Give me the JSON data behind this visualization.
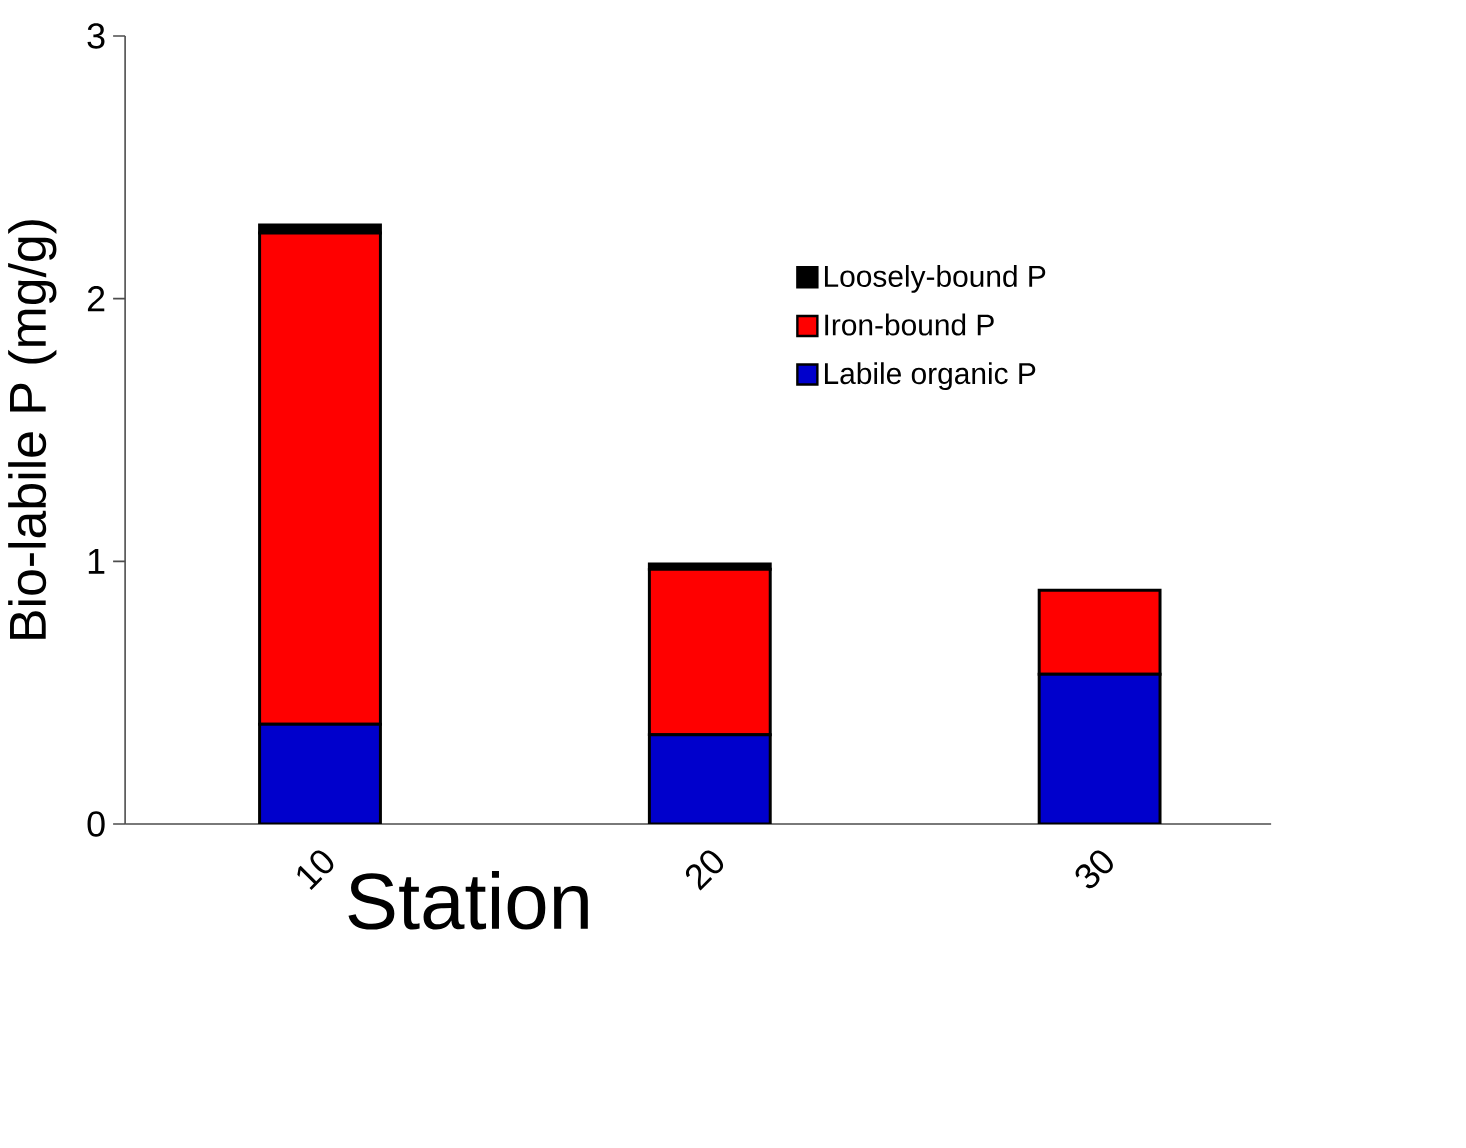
{
  "chart_data": {
    "type": "bar",
    "stacked": true,
    "xlabel": "Station",
    "ylabel": "Bio-labile P  (mg/g)",
    "categories": [
      "10",
      "20",
      "30"
    ],
    "series": [
      {
        "name": "Labile organic P",
        "color": "#0000cc",
        "values": [
          0.38,
          0.34,
          0.57
        ]
      },
      {
        "name": "Iron-bound P",
        "color": "#ff0000",
        "values": [
          1.87,
          0.63,
          0.32
        ]
      },
      {
        "name": "Loosely-bound P",
        "color": "#000000",
        "values": [
          0.03,
          0.02,
          0.0
        ]
      }
    ],
    "ylim": [
      0,
      3
    ],
    "yticks": [
      0,
      1,
      2,
      3
    ],
    "grid": false,
    "legend": "top right"
  }
}
